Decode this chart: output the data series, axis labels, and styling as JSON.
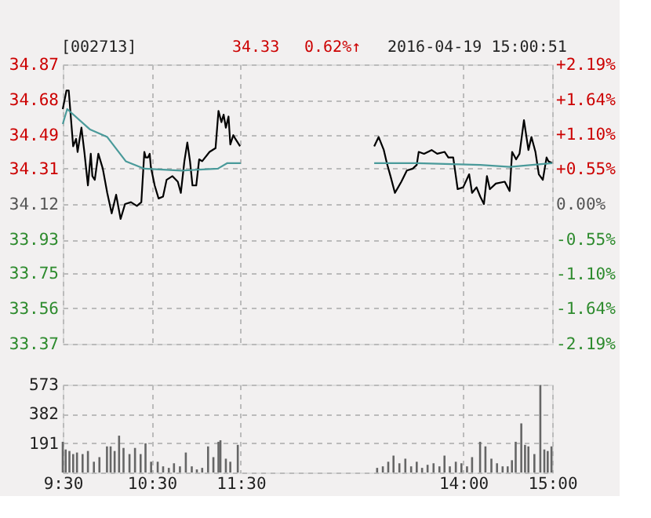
{
  "chart_data": [
    {
      "type": "line",
      "title": "[002713]",
      "annotations": [
        "34.33",
        "0.62%↑",
        "2016-04-19 15:00:51"
      ],
      "xlim": [
        9.5,
        15
      ],
      "ylim": [
        33.37,
        34.87
      ],
      "yticks": [
        33.37,
        33.56,
        33.75,
        33.93,
        34.12,
        34.31,
        34.49,
        34.68,
        34.87
      ],
      "y2lim": [
        -2.19,
        2.19
      ],
      "y2ticks": [
        {
          "value": -2.19,
          "label": "-2.19%"
        },
        {
          "value": -1.64,
          "label": "-1.64%"
        },
        {
          "value": -1.1,
          "label": "-1.10%"
        },
        {
          "value": -0.55,
          "label": "-0.55%"
        },
        {
          "value": 0,
          "label": "0.00%"
        },
        {
          "value": 0.55,
          "label": "+0.55%"
        },
        {
          "value": 1.1,
          "label": "+1.10%"
        },
        {
          "value": 1.64,
          "label": "+1.64%"
        },
        {
          "value": 2.19,
          "label": "+2.19%"
        }
      ],
      "tick_labels": "y",
      "grid": true,
      "line_style": "solid",
      "marker": "none",
      "series": [
        {
          "color": "#000000",
          "x": [
            9.5,
            9.542,
            9.567,
            9.617,
            9.65,
            9.667,
            9.71,
            9.743,
            9.783,
            9.815,
            9.833,
            9.86,
            9.9,
            9.95,
            10.0,
            10.05,
            10.1,
            10.15,
            10.2,
            10.267,
            10.333,
            10.383,
            10.417,
            10.433,
            10.457,
            10.477,
            10.49,
            10.533,
            10.577,
            10.627,
            10.667,
            10.733,
            10.793,
            10.827,
            10.867,
            10.9,
            10.93,
            10.958,
            11.0,
            11.033,
            11.067,
            11.15,
            11.217,
            11.25,
            11.283,
            11.308,
            11.333,
            11.363,
            11.383,
            11.417,
            11.44,
            11.493
          ],
          "values": [
            34.63,
            34.73,
            34.73,
            34.43,
            34.47,
            34.4,
            34.53,
            34.4,
            34.22,
            34.39,
            34.27,
            34.25,
            34.39,
            34.31,
            34.18,
            34.07,
            34.17,
            34.04,
            34.12,
            34.13,
            34.11,
            34.13,
            34.4,
            34.37,
            34.37,
            34.39,
            34.32,
            34.22,
            34.15,
            34.16,
            34.25,
            34.27,
            34.24,
            34.18,
            34.35,
            34.45,
            34.35,
            34.22,
            34.22,
            34.36,
            34.35,
            34.4,
            34.42,
            34.62,
            34.56,
            34.6,
            34.53,
            34.59,
            34.44,
            34.49,
            34.47,
            34.43
          ]
        },
        {
          "color": "#000000",
          "x": [
            13.0,
            13.05,
            13.108,
            13.142,
            13.183,
            13.233,
            13.305,
            13.367,
            13.433,
            13.478,
            13.5,
            13.56,
            13.645,
            13.708,
            13.792,
            13.833,
            13.888,
            13.938,
            14.0,
            14.067,
            14.1,
            14.15,
            14.192,
            14.233,
            14.267,
            14.3,
            14.367,
            14.467,
            14.522,
            14.55,
            14.595,
            14.633,
            14.683,
            14.733,
            14.767,
            14.812,
            14.85,
            14.895,
            14.937,
            14.958,
            15.0
          ],
          "values": [
            34.43,
            34.48,
            34.41,
            34.34,
            34.27,
            34.18,
            34.24,
            34.3,
            34.31,
            34.33,
            34.4,
            34.39,
            34.41,
            34.39,
            34.4,
            34.37,
            34.37,
            34.2,
            34.21,
            34.28,
            34.18,
            34.21,
            34.16,
            34.12,
            34.27,
            34.2,
            34.23,
            34.24,
            34.19,
            34.4,
            34.36,
            34.39,
            34.57,
            34.41,
            34.48,
            34.4,
            34.28,
            34.25,
            34.37,
            34.35,
            34.34
          ]
        },
        {
          "color": "#4a9a9a",
          "x": [
            9.5,
            9.55,
            9.808,
            10.0,
            10.208,
            10.417,
            10.833,
            11.243,
            11.35,
            11.5
          ],
          "values": [
            34.55,
            34.63,
            34.52,
            34.48,
            34.35,
            34.31,
            34.3,
            34.31,
            34.34,
            34.34
          ]
        },
        {
          "color": "#4a9a9a",
          "x": [
            13.0,
            13.478,
            14.192,
            14.525,
            15.0
          ],
          "values": [
            34.34,
            34.34,
            34.33,
            34.32,
            34.34
          ]
        }
      ]
    },
    {
      "type": "bar",
      "xlim": [
        9.5,
        15
      ],
      "xticks": [
        {
          "value": 9.5,
          "label": "9:30"
        },
        {
          "value": 10.5,
          "label": "10:30"
        },
        {
          "value": 11.5,
          "label": "11:30"
        },
        {
          "value": 14,
          "label": "14:00"
        },
        {
          "value": 15,
          "label": "15:00"
        }
      ],
      "ylim": [
        0,
        573
      ],
      "yticks": [
        {
          "value": 0,
          "label": null
        },
        191,
        382,
        573
      ],
      "grid": true,
      "series": [
        {
          "color": "#666666",
          "x": [
            9.5,
            9.533,
            9.575,
            9.617,
            9.66,
            9.723,
            9.783,
            9.85,
            9.912,
            9.997,
            10.038,
            10.083,
            10.133,
            10.183,
            10.25,
            10.312,
            10.375,
            10.43,
            10.493,
            10.567,
            10.628,
            10.692,
            10.75,
            10.817,
            10.883,
            10.95,
            11.007,
            11.067,
            11.133,
            11.193,
            11.25,
            11.272,
            11.333,
            11.383,
            11.467,
            13.033,
            13.097,
            13.158,
            13.217,
            13.283,
            13.35,
            13.415,
            13.478,
            13.538,
            13.6,
            13.667,
            13.733,
            13.79,
            13.85,
            13.917,
            13.98,
            14.043,
            14.1,
            14.19,
            14.25,
            14.317,
            14.38,
            14.443,
            14.5,
            14.548,
            14.59,
            14.653,
            14.695,
            14.733,
            14.8,
            14.867,
            14.912,
            14.95,
            14.992
          ],
          "values": [
            200,
            150,
            140,
            120,
            130,
            120,
            140,
            70,
            100,
            170,
            170,
            140,
            240,
            160,
            120,
            160,
            120,
            190,
            70,
            70,
            40,
            30,
            60,
            40,
            130,
            40,
            20,
            30,
            170,
            100,
            200,
            210,
            90,
            70,
            180,
            30,
            40,
            70,
            110,
            60,
            90,
            40,
            70,
            30,
            50,
            60,
            40,
            110,
            40,
            70,
            60,
            40,
            100,
            200,
            170,
            90,
            60,
            40,
            40,
            80,
            200,
            320,
            180,
            170,
            120,
            570,
            150,
            140,
            170
          ]
        }
      ]
    }
  ]
}
